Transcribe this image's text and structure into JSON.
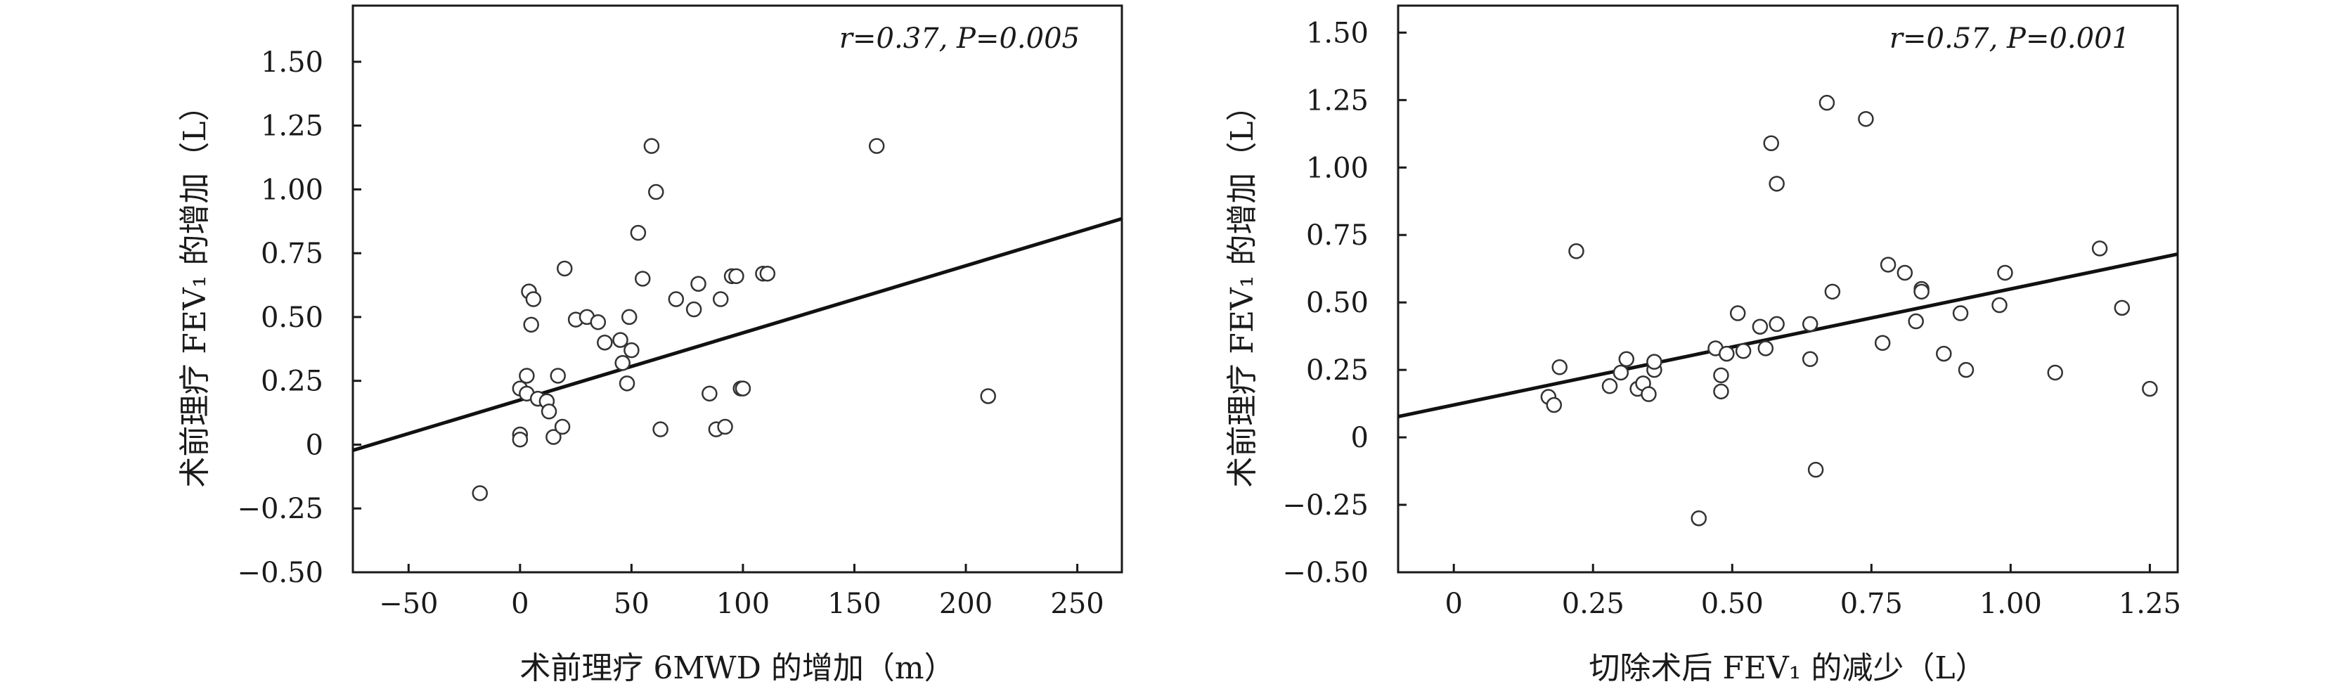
{
  "chart_data": [
    {
      "type": "scatter",
      "xlabel": "术前理疗 6MWD 的增加（m）",
      "ylabel": "术前理疗 FEV₁ 的增加（L）",
      "annotation": "r=0.37, P=0.005",
      "xlim": [
        -75,
        270
      ],
      "ylim": [
        -0.5,
        1.72
      ],
      "xticks": [
        "−50",
        "0",
        "50",
        "100",
        "150",
        "200",
        "250"
      ],
      "xtick_values": [
        -50,
        0,
        50,
        100,
        150,
        200,
        250
      ],
      "yticks": [
        "−0.50",
        "−0.25",
        "0",
        "0.25",
        "0.50",
        "0.75",
        "1.00",
        "1.25",
        "1.50"
      ],
      "ytick_values": [
        -0.5,
        -0.25,
        0,
        0.25,
        0.5,
        0.75,
        1.0,
        1.25,
        1.5
      ],
      "grid": false,
      "fit_line": {
        "slope": 0.00263,
        "intercept": 0.175
      },
      "points": [
        [
          -18,
          -0.19
        ],
        [
          0,
          0.22
        ],
        [
          0,
          0.04
        ],
        [
          0,
          0.02
        ],
        [
          3,
          0.27
        ],
        [
          3,
          0.2
        ],
        [
          4,
          0.6
        ],
        [
          5,
          0.47
        ],
        [
          6,
          0.57
        ],
        [
          8,
          0.18
        ],
        [
          12,
          0.17
        ],
        [
          13,
          0.13
        ],
        [
          15,
          0.03
        ],
        [
          17,
          0.27
        ],
        [
          19,
          0.07
        ],
        [
          20,
          0.69
        ],
        [
          25,
          0.49
        ],
        [
          30,
          0.5
        ],
        [
          35,
          0.48
        ],
        [
          38,
          0.4
        ],
        [
          45,
          0.41
        ],
        [
          46,
          0.32
        ],
        [
          48,
          0.24
        ],
        [
          49,
          0.5
        ],
        [
          50,
          0.37
        ],
        [
          53,
          0.83
        ],
        [
          55,
          0.65
        ],
        [
          59,
          1.17
        ],
        [
          61,
          0.99
        ],
        [
          63,
          0.06
        ],
        [
          70,
          0.57
        ],
        [
          78,
          0.53
        ],
        [
          80,
          0.63
        ],
        [
          85,
          0.2
        ],
        [
          88,
          0.06
        ],
        [
          90,
          0.57
        ],
        [
          92,
          0.07
        ],
        [
          95,
          0.66
        ],
        [
          97,
          0.66
        ],
        [
          99,
          0.22
        ],
        [
          100,
          0.22
        ],
        [
          109,
          0.67
        ],
        [
          111,
          0.67
        ],
        [
          160,
          1.17
        ],
        [
          210,
          0.19
        ]
      ]
    },
    {
      "type": "scatter",
      "xlabel": "切除术后 FEV₁ 的减少（L）",
      "ylabel": "术前理疗 FEV₁ 的增加（L）",
      "annotation": "r=0.57, P=0.001",
      "xlim": [
        -0.1,
        1.3
      ],
      "ylim": [
        -0.5,
        1.6
      ],
      "xticks": [
        "0",
        "0.25",
        "0.50",
        "0.75",
        "1.00",
        "1.25"
      ],
      "xtick_values": [
        0,
        0.25,
        0.5,
        0.75,
        1.0,
        1.25
      ],
      "yticks": [
        "−0.50",
        "−0.25",
        "0",
        "0.25",
        "0.50",
        "0.75",
        "1.00",
        "1.25",
        "1.50"
      ],
      "ytick_values": [
        -0.5,
        -0.25,
        0,
        0.25,
        0.5,
        0.75,
        1.0,
        1.25,
        1.5
      ],
      "grid": false,
      "fit_line": {
        "slope": 0.43,
        "intercept": 0.12
      },
      "points": [
        [
          0.17,
          0.15
        ],
        [
          0.18,
          0.12
        ],
        [
          0.19,
          0.26
        ],
        [
          0.22,
          0.69
        ],
        [
          0.28,
          0.19
        ],
        [
          0.3,
          0.24
        ],
        [
          0.31,
          0.29
        ],
        [
          0.33,
          0.18
        ],
        [
          0.34,
          0.2
        ],
        [
          0.35,
          0.16
        ],
        [
          0.36,
          0.25
        ],
        [
          0.36,
          0.28
        ],
        [
          0.44,
          -0.3
        ],
        [
          0.47,
          0.33
        ],
        [
          0.48,
          0.23
        ],
        [
          0.48,
          0.17
        ],
        [
          0.49,
          0.31
        ],
        [
          0.51,
          0.46
        ],
        [
          0.52,
          0.32
        ],
        [
          0.55,
          0.41
        ],
        [
          0.56,
          0.33
        ],
        [
          0.57,
          1.09
        ],
        [
          0.58,
          0.94
        ],
        [
          0.58,
          0.42
        ],
        [
          0.64,
          0.42
        ],
        [
          0.64,
          0.29
        ],
        [
          0.65,
          -0.12
        ],
        [
          0.67,
          1.24
        ],
        [
          0.68,
          0.54
        ],
        [
          0.74,
          1.18
        ],
        [
          0.77,
          0.35
        ],
        [
          0.78,
          0.64
        ],
        [
          0.81,
          0.61
        ],
        [
          0.83,
          0.43
        ],
        [
          0.84,
          0.55
        ],
        [
          0.84,
          0.54
        ],
        [
          0.88,
          0.31
        ],
        [
          0.91,
          0.46
        ],
        [
          0.92,
          0.25
        ],
        [
          0.98,
          0.49
        ],
        [
          0.99,
          0.61
        ],
        [
          1.08,
          0.24
        ],
        [
          1.16,
          0.7
        ],
        [
          1.2,
          0.48
        ],
        [
          1.25,
          0.18
        ]
      ]
    }
  ]
}
